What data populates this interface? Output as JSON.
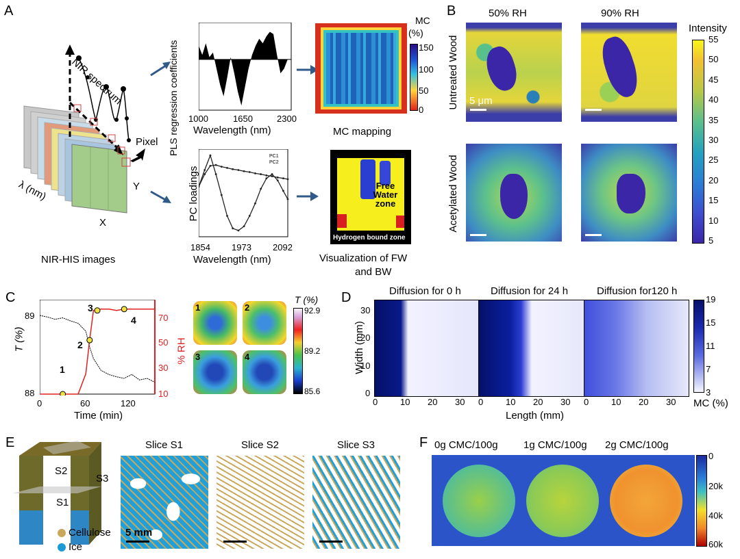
{
  "panels": {
    "A": {
      "letter": "A",
      "hsi_labels": {
        "nir_spectrum": "NIR spectrum",
        "pixel": "Pixel",
        "lambda": "λ (nm)",
        "x": "X",
        "y": "Y",
        "caption": "NIR-HIS images"
      },
      "pls": {
        "ylabel": "PLS regression coefficients",
        "xlabel": "Wavelength (nm)",
        "ticks": [
          "1000",
          "1650",
          "2300"
        ]
      },
      "mc_map": {
        "unit_title": "MC",
        "unit_pct": "(%)",
        "ticks": [
          "150",
          "100",
          "50",
          "0"
        ],
        "caption": "MC mapping"
      },
      "pc": {
        "ylabel": "PC loadings",
        "xlabel": "Wavelength (nm)",
        "ticks": [
          "1854",
          "1973",
          "2092"
        ],
        "legend": [
          "PC1",
          "PC2"
        ]
      },
      "fw_map": {
        "free_water": "Free Water zone",
        "hydrogen": "Hydrogen bound zone",
        "caption_l1": "Visualization of FW",
        "caption_l2": "and BW"
      }
    },
    "B": {
      "letter": "B",
      "cols": [
        "50% RH",
        "90% RH"
      ],
      "rows": [
        "Untreated Wood",
        "Acetylated Wood"
      ],
      "scalebar": "5 μm",
      "colorbar_title": "Intensity",
      "colorbar_ticks": [
        "55",
        "50",
        "45",
        "40",
        "35",
        "30",
        "25",
        "20",
        "15",
        "10",
        "5"
      ]
    },
    "C": {
      "letter": "C",
      "xlabel": "Time (min)",
      "ylabel_left": "T (%)",
      "ylabel_right": "% RH",
      "xticks": [
        "0",
        "60",
        "120"
      ],
      "yticks_left": [
        "89",
        "88"
      ],
      "yticks_right": [
        "70",
        "50",
        "30",
        "10"
      ],
      "points": [
        "1",
        "2",
        "3",
        "4"
      ],
      "map_title": "T (%)",
      "map_ticks": [
        "92.9",
        "89.2",
        "85.6"
      ]
    },
    "D": {
      "letter": "D",
      "titles": [
        "Diffusion for 0 h",
        "Diffusion for 24 h",
        "Diffusion for120 h"
      ],
      "ylabel": "Width (mm)",
      "xlabel": "Length (mm)",
      "yticks": [
        "30",
        "20",
        "10",
        "0"
      ],
      "xticks": [
        "0",
        "10",
        "20",
        "30"
      ],
      "cbar_ticks": [
        "19",
        "15",
        "11",
        "7",
        "3"
      ],
      "cbar_unit": "MC (%)"
    },
    "E": {
      "letter": "E",
      "slices": [
        "Slice S1",
        "Slice S2",
        "Slice S3"
      ],
      "model_labels": [
        "S2",
        "S3",
        "S1"
      ],
      "legend": [
        "Cellulose",
        "Ice"
      ],
      "scalebar": "5 mm"
    },
    "F": {
      "letter": "F",
      "titles": [
        "0g CMC/100g",
        "1g CMC/100g",
        "2g CMC/100g"
      ],
      "cbar_ticks": [
        "0",
        "20k",
        "40k",
        "60k"
      ]
    }
  },
  "chart_data": [
    {
      "type": "line",
      "title": "",
      "xlabel": "Wavelength (nm)",
      "ylabel": "PLS regression coefficients",
      "xlim": [
        1000,
        2300
      ],
      "x": [
        1000,
        1050,
        1100,
        1150,
        1200,
        1250,
        1300,
        1350,
        1400,
        1450,
        1500,
        1550,
        1600,
        1650,
        1700,
        1750,
        1800,
        1850,
        1900,
        1950,
        2000,
        2050,
        2100,
        2150,
        2200,
        2250,
        2300
      ],
      "series": [
        {
          "values": [
            0.3,
            0.1,
            0.35,
            0.05,
            0.15,
            -0.2,
            -0.55,
            -0.8,
            -0.4,
            0.05,
            -0.3,
            -0.7,
            -1.0,
            -0.6,
            -0.2,
            0.1,
            0.3,
            0.45,
            0.35,
            0.5,
            0.6,
            0.55,
            0.1,
            -0.3,
            -0.2,
            0.0,
            0.0
          ]
        }
      ]
    },
    {
      "type": "line",
      "title": "",
      "xlabel": "Wavelength (nm)",
      "ylabel": "PC loadings",
      "xlim": [
        1854,
        2092
      ],
      "legend": [
        "PC1",
        "PC2"
      ],
      "x": [
        1854,
        1870,
        1885,
        1900,
        1915,
        1930,
        1945,
        1960,
        1975,
        1990,
        2005,
        2020,
        2035,
        2050,
        2065,
        2080,
        2092
      ],
      "series": [
        {
          "name": "PC1",
          "values": [
            0.2,
            0.6,
            0.95,
            0.5,
            0.0,
            -0.5,
            -0.8,
            -0.85,
            -0.75,
            -0.5,
            -0.2,
            0.15,
            0.4,
            0.5,
            0.35,
            0.1,
            -0.1
          ]
        },
        {
          "name": "PC2",
          "values": [
            0.2,
            0.5,
            0.7,
            0.72,
            0.68,
            0.65,
            0.62,
            0.6,
            0.57,
            0.55,
            0.52,
            0.5,
            0.47,
            0.45,
            0.42,
            0.4,
            0.38
          ]
        }
      ]
    },
    {
      "type": "line",
      "title": "",
      "xlabel": "Time (min)",
      "ylabel": "T (%)",
      "xlim": [
        0,
        150
      ],
      "ylim": [
        88,
        89.2
      ],
      "x": [
        0,
        10,
        20,
        30,
        40,
        50,
        60,
        65,
        70,
        80,
        90,
        100,
        110,
        120,
        130,
        140,
        150
      ],
      "series": [
        {
          "name": "T (%)",
          "values": [
            89.0,
            88.98,
            88.95,
            88.97,
            88.93,
            88.9,
            88.8,
            88.6,
            88.45,
            88.3,
            88.25,
            88.22,
            88.2,
            88.25,
            88.18,
            88.2,
            88.15
          ]
        },
        {
          "name": "% RH",
          "values": [
            10,
            10,
            10,
            10,
            10,
            10,
            25,
            50,
            72,
            73,
            73,
            72,
            73,
            73,
            73,
            73,
            73
          ]
        }
      ]
    }
  ]
}
